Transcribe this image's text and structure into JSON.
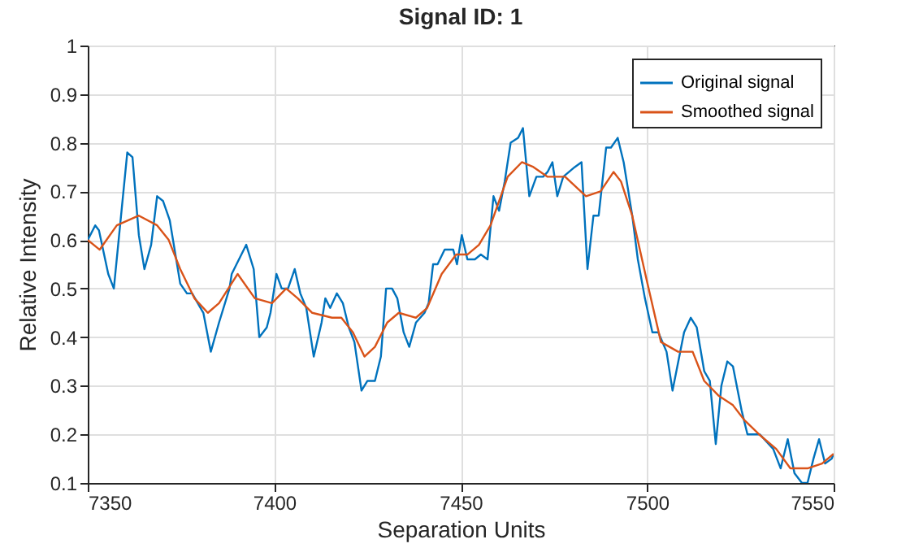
{
  "chart_data": {
    "type": "line",
    "title": "Signal ID: 1",
    "xlabel": "Separation Units",
    "ylabel": "Relative Intensity",
    "xlim": [
      7350,
      7550
    ],
    "xticks": [
      7350,
      7400,
      7450,
      7500,
      7550
    ],
    "ylim": [
      0.1,
      1
    ],
    "yticks": [
      0.1,
      0.2,
      0.3,
      0.4,
      0.5,
      0.6,
      0.7,
      0.8,
      0.9,
      1
    ],
    "grid": true,
    "legend": "top right",
    "series": [
      {
        "name": "Original signal",
        "color": "#0072bd",
        "x": [
          7350,
          7352,
          7353,
          7355.5,
          7357,
          7360.6,
          7362,
          7363.7,
          7365.2,
          7367,
          7368.6,
          7370.2,
          7372,
          7374.8,
          7376.6,
          7378,
          7381,
          7383,
          7385.2,
          7388,
          7388.6,
          7392.5,
          7394.5,
          7396,
          7398,
          7399,
          7400.6,
          7402,
          7403.7,
          7405.5,
          7407,
          7408.6,
          7410.6,
          7412.7,
          7413.7,
          7415,
          7416.8,
          7418.4,
          7420,
          7421.5,
          7423.4,
          7425,
          7427,
          7428.6,
          7430,
          7431.6,
          7433,
          7434.7,
          7436.2,
          7438,
          7440.3,
          7441.4,
          7442.6,
          7443.8,
          7445.7,
          7448,
          7449,
          7450.3,
          7451.8,
          7453.8,
          7455.4,
          7457.2,
          7458.8,
          7460.3,
          7461.8,
          7463.4,
          7465.4,
          7466.7,
          7468.4,
          7470.3,
          7472.1,
          7473.3,
          7474.6,
          7475.9,
          7477.5,
          7480.6,
          7482.4,
          7484,
          7485.6,
          7487,
          7489,
          7490.3,
          7492.1,
          7493.7,
          7496,
          7497.5,
          7499.4,
          7501.4,
          7503,
          7505.2,
          7506.8,
          7509.9,
          7511.7,
          7513.3,
          7515.3,
          7516.8,
          7518.4,
          7519.9,
          7521.5,
          7523,
          7525.3,
          7526.9,
          7528.4,
          7530.2,
          7533.8,
          7535.8,
          7537.7,
          7539.5,
          7541.5,
          7543,
          7544.6,
          7546.1,
          7547.7,
          7549.5,
          7550
        ],
        "values": [
          0.6,
          0.63,
          0.62,
          0.53,
          0.5,
          0.78,
          0.77,
          0.61,
          0.54,
          0.59,
          0.69,
          0.68,
          0.64,
          0.51,
          0.49,
          0.49,
          0.45,
          0.37,
          0.43,
          0.5,
          0.53,
          0.59,
          0.54,
          0.4,
          0.42,
          0.45,
          0.53,
          0.5,
          0.5,
          0.54,
          0.49,
          0.46,
          0.36,
          0.43,
          0.48,
          0.46,
          0.49,
          0.47,
          0.42,
          0.39,
          0.29,
          0.31,
          0.31,
          0.36,
          0.5,
          0.5,
          0.48,
          0.41,
          0.38,
          0.43,
          0.45,
          0.47,
          0.55,
          0.55,
          0.58,
          0.58,
          0.55,
          0.61,
          0.56,
          0.56,
          0.57,
          0.56,
          0.69,
          0.66,
          0.72,
          0.8,
          0.81,
          0.83,
          0.69,
          0.73,
          0.73,
          0.74,
          0.76,
          0.69,
          0.73,
          0.75,
          0.76,
          0.54,
          0.65,
          0.65,
          0.79,
          0.79,
          0.81,
          0.76,
          0.65,
          0.56,
          0.48,
          0.41,
          0.41,
          0.37,
          0.29,
          0.41,
          0.44,
          0.42,
          0.33,
          0.31,
          0.18,
          0.3,
          0.35,
          0.34,
          0.25,
          0.2,
          0.2,
          0.2,
          0.17,
          0.13,
          0.19,
          0.12,
          0.1,
          0.1,
          0.15,
          0.19,
          0.14,
          0.15,
          0.16
        ]
      },
      {
        "name": "Smoothed signal",
        "color": "#d95319",
        "x": [
          7350,
          7353.2,
          7357.8,
          7363.7,
          7368.6,
          7371.7,
          7374.8,
          7378.6,
          7382.2,
          7385.2,
          7390.2,
          7394.8,
          7399.4,
          7403.2,
          7406.3,
          7410.2,
          7415.5,
          7418,
          7421.1,
          7424.2,
          7427,
          7430.3,
          7433.4,
          7438,
          7441,
          7444.9,
          7448.8,
          7451.8,
          7454.9,
          7458,
          7462.6,
          7466.4,
          7469.5,
          7473.3,
          7478,
          7483.6,
          7487.5,
          7491,
          7493,
          7496,
          7499.8,
          7503.7,
          7508.3,
          7512.2,
          7515.3,
          7519.1,
          7523,
          7526,
          7530,
          7534.6,
          7538.4,
          7543,
          7546.9,
          7550
        ],
        "values": [
          0.6,
          0.58,
          0.63,
          0.65,
          0.63,
          0.6,
          0.54,
          0.48,
          0.45,
          0.47,
          0.53,
          0.48,
          0.47,
          0.5,
          0.48,
          0.45,
          0.44,
          0.44,
          0.41,
          0.36,
          0.38,
          0.43,
          0.45,
          0.44,
          0.46,
          0.53,
          0.57,
          0.57,
          0.59,
          0.63,
          0.73,
          0.76,
          0.75,
          0.73,
          0.73,
          0.69,
          0.7,
          0.74,
          0.72,
          0.65,
          0.52,
          0.39,
          0.37,
          0.37,
          0.31,
          0.28,
          0.26,
          0.23,
          0.2,
          0.17,
          0.13,
          0.13,
          0.14,
          0.16
        ]
      }
    ]
  }
}
